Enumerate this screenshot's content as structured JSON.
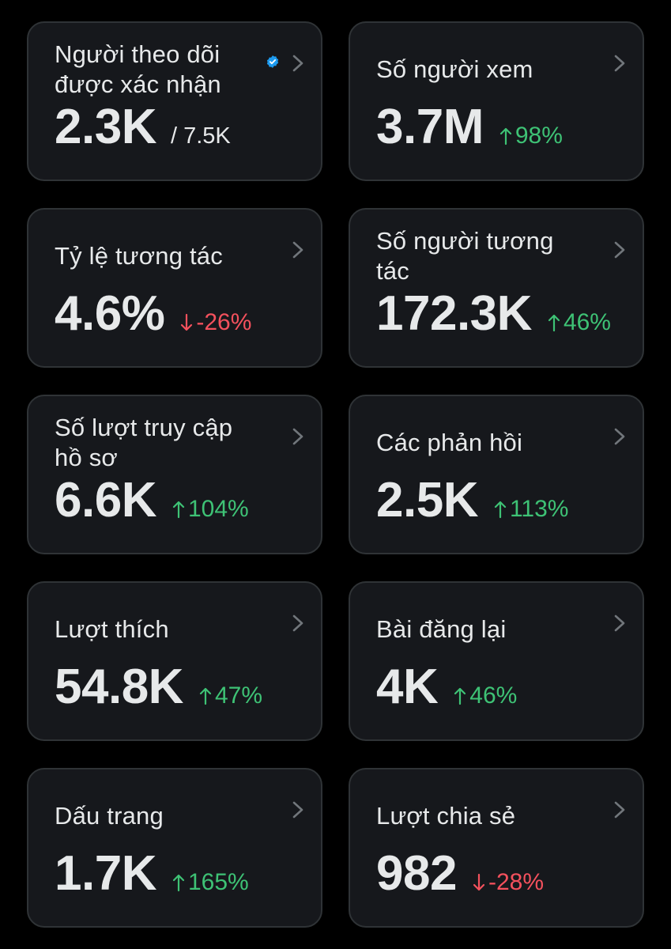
{
  "colors": {
    "background": "#000000",
    "card_background": "#16181c",
    "card_border": "#2f3336",
    "text": "#e7e9ea",
    "positive": "#3ec275",
    "negative": "#f4515d",
    "verified": "#1d9bf0",
    "chevron": "#71767b"
  },
  "cards": [
    {
      "title": "Người theo dõi được xác nhận",
      "value": "2.3K",
      "sub_value": "/ 7.5K",
      "verified_icon": "verified-badge-icon"
    },
    {
      "title": "Số người xem",
      "value": "3.7M",
      "change": "98%",
      "direction": "up"
    },
    {
      "title": "Tỷ lệ tương tác",
      "value": "4.6%",
      "change": "-26%",
      "direction": "down"
    },
    {
      "title": "Số người tương tác",
      "value": "172.3K",
      "change": "46%",
      "direction": "up"
    },
    {
      "title": "Số lượt truy cập hồ sơ",
      "value": "6.6K",
      "change": "104%",
      "direction": "up"
    },
    {
      "title": "Các phản hồi",
      "value": "2.5K",
      "change": "113%",
      "direction": "up"
    },
    {
      "title": "Lượt thích",
      "value": "54.8K",
      "change": "47%",
      "direction": "up"
    },
    {
      "title": "Bài đăng lại",
      "value": "4K",
      "change": "46%",
      "direction": "up"
    },
    {
      "title": "Dấu trang",
      "value": "1.7K",
      "change": "165%",
      "direction": "up"
    },
    {
      "title": "Lượt chia sẻ",
      "value": "982",
      "change": "-28%",
      "direction": "down"
    }
  ]
}
